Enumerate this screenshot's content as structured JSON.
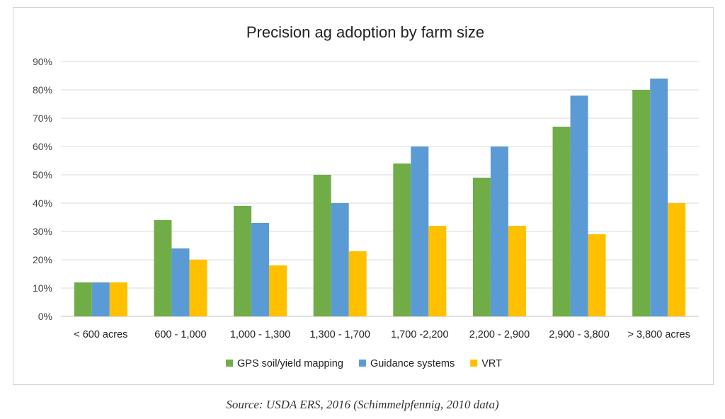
{
  "chart_data": {
    "type": "bar",
    "title": "Precision ag adoption by farm size",
    "xlabel": "",
    "ylabel": "",
    "ylim": [
      0,
      90
    ],
    "yticks": [
      0,
      10,
      20,
      30,
      40,
      50,
      60,
      70,
      80,
      90
    ],
    "ytick_format": "percent",
    "grid": true,
    "legend_position": "bottom",
    "categories": [
      "< 600 acres",
      "600 - 1,000",
      "1,000 - 1,300",
      "1,300 - 1,700",
      "1,700 -2,200",
      "2,200 - 2,900",
      "2,900 - 3,800",
      "> 3,800 acres"
    ],
    "series": [
      {
        "name": "GPS soil/yield mapping",
        "color": "#70ad47",
        "values": [
          12,
          34,
          39,
          50,
          54,
          49,
          67,
          80
        ]
      },
      {
        "name": "Guidance systems",
        "color": "#5b9bd5",
        "values": [
          12,
          24,
          33,
          40,
          60,
          60,
          78,
          84
        ]
      },
      {
        "name": "VRT",
        "color": "#ffc000",
        "values": [
          12,
          20,
          18,
          23,
          32,
          32,
          29,
          40
        ]
      }
    ]
  },
  "source_note": "Source: USDA ERS, 2016 (Schimmelpfennig, 2010 data)"
}
